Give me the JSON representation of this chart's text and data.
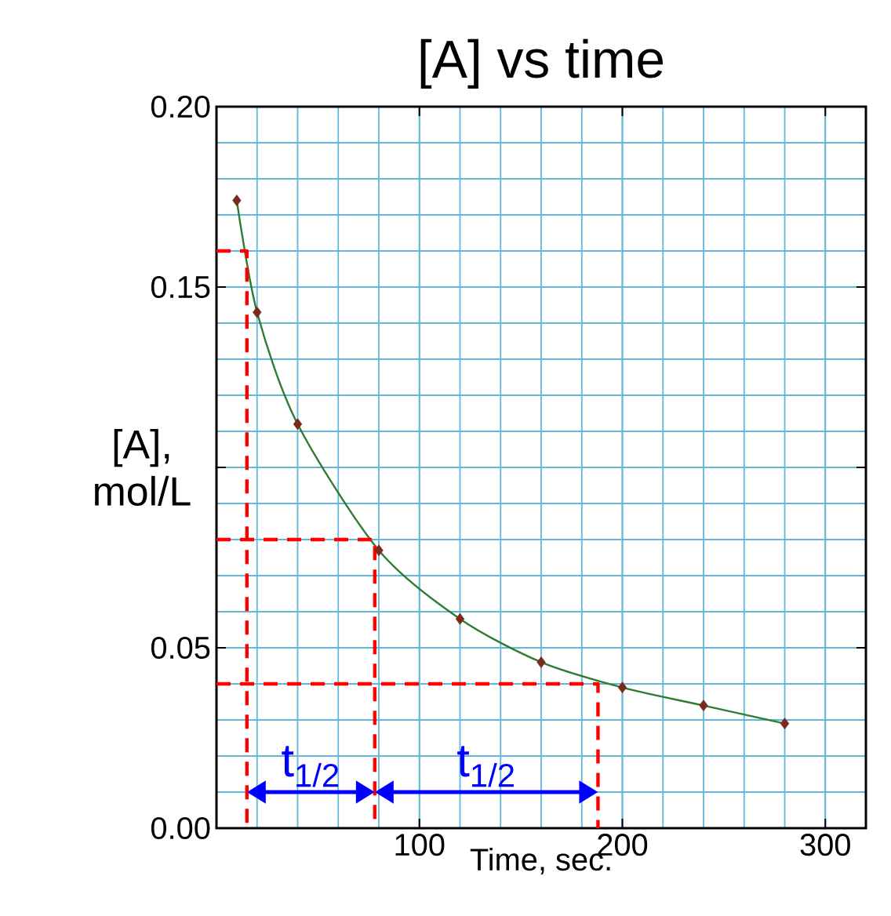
{
  "chart_data": {
    "type": "line",
    "title": "[A] vs time",
    "xlabel": "Time, sec.",
    "ylabel": "[A], mol/L",
    "x": [
      10,
      20,
      40,
      80,
      120,
      160,
      200,
      240,
      280
    ],
    "series": [
      {
        "color": "#2e7d32",
        "values": [
          0.174,
          0.143,
          0.112,
          0.077,
          0.058,
          0.046,
          0.039,
          0.034,
          0.029
        ]
      },
      {
        "type": "scatter",
        "marker": "diamond",
        "color": "#7b2b1e",
        "values": [
          0.174,
          0.143,
          0.112,
          0.077,
          0.058,
          0.046,
          0.039,
          0.034,
          0.029
        ]
      },
      {
        "color": "#ff0000",
        "line_style": "dashed",
        "x": [
          0,
          15,
          15
        ],
        "values": [
          0.16,
          0.16,
          0
        ]
      },
      {
        "color": "#ff0000",
        "line_style": "dashed",
        "x": [
          0,
          78,
          78
        ],
        "values": [
          0.08,
          0.08,
          0
        ]
      },
      {
        "color": "#ff0000",
        "line_style": "dashed",
        "x": [
          0,
          188,
          188
        ],
        "values": [
          0.04,
          0.04,
          0
        ]
      }
    ],
    "marker": "none",
    "xlim": [
      0,
      320
    ],
    "ylim": [
      0,
      0.2
    ],
    "xticks": [
      100,
      200,
      300
    ],
    "yticks": [
      {
        "value": 0,
        "label": "0.00"
      },
      {
        "value": 0.05,
        "label": "0.05"
      },
      {
        "value": 0.1,
        "label": null
      },
      {
        "value": 0.15,
        "label": "0.15"
      },
      {
        "value": 0.2,
        "label": "0.20"
      }
    ],
    "grid": true,
    "annotations": [
      "t$_{1/2}$",
      "t$_{1/2}$"
    ]
  }
}
